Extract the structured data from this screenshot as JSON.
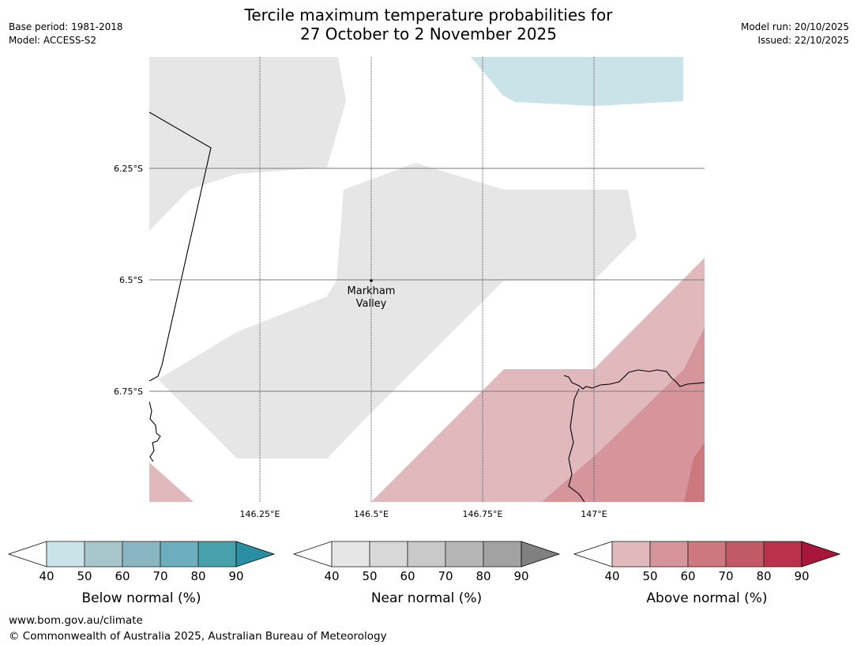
{
  "header": {
    "title_line1": "Tercile maximum temperature probabilities for",
    "title_line2": "27 October to 2 November 2025",
    "base_period": "Base period: 1981-2018",
    "model": "Model: ACCESS-S2",
    "model_run": "Model run: 20/10/2025",
    "issued": "Issued: 22/10/2025"
  },
  "map": {
    "lat_labels": [
      "6.25°S",
      "6.5°S",
      "6.75°S"
    ],
    "lon_labels": [
      "146.25°E",
      "146.5°E",
      "146.75°E",
      "147°E"
    ],
    "place_name_line1": "Markham",
    "place_name_line2": "Valley"
  },
  "legends": [
    {
      "label": "Below normal (%)",
      "ticks": [
        "40",
        "50",
        "60",
        "70",
        "80",
        "90"
      ],
      "colors": [
        "#cae3e8",
        "#a7c6cb",
        "#89b6c2",
        "#6caebd",
        "#47a1ad",
        "#2a8fa3"
      ]
    },
    {
      "label": "Near normal (%)",
      "ticks": [
        "40",
        "50",
        "60",
        "70",
        "80",
        "90"
      ],
      "colors": [
        "#e6e6e6",
        "#d8d8d8",
        "#c9c9c9",
        "#b6b6b6",
        "#a2a2a2",
        "#808080"
      ]
    },
    {
      "label": "Above normal (%)",
      "ticks": [
        "40",
        "50",
        "60",
        "70",
        "80",
        "90"
      ],
      "colors": [
        "#e1b9bd",
        "#d6959a",
        "#cd777e",
        "#c25a66",
        "#b9314a",
        "#a9163a"
      ]
    }
  ],
  "footer": {
    "url": "www.bom.gov.au/climate",
    "copyright": "© Commonwealth of Australia 2025, Australian Bureau of Meteorology"
  }
}
